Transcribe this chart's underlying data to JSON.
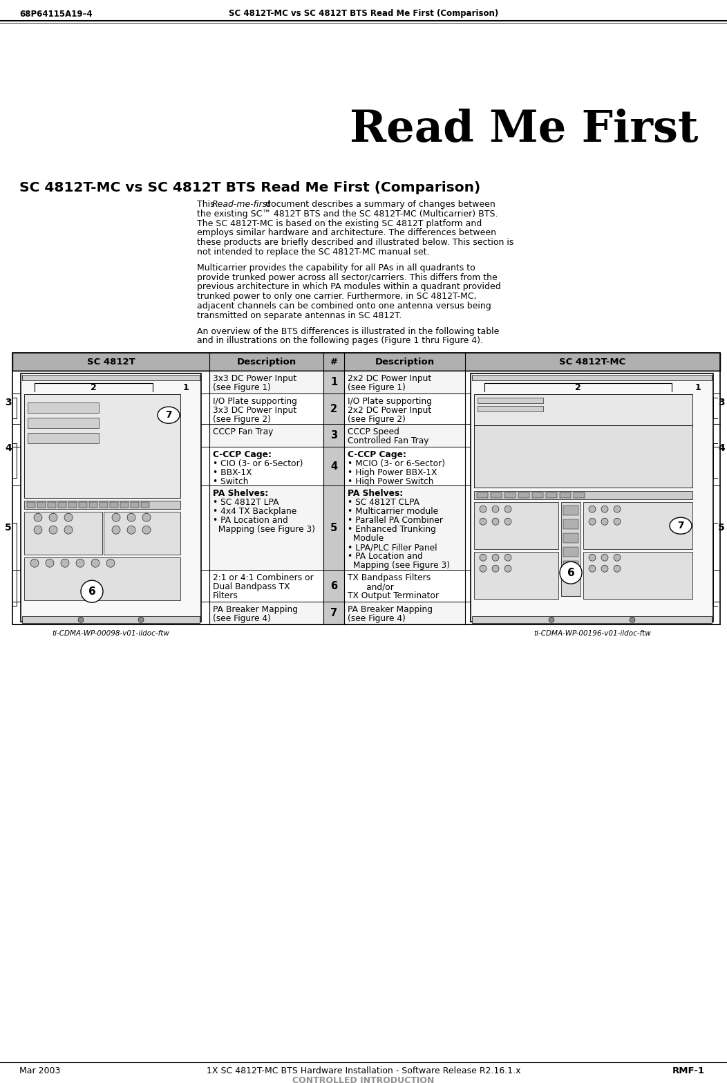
{
  "header_left": "68P64115A19–4",
  "header_center": "SC 4812T-MC vs SC 4812T BTS Read Me First (Comparison)",
  "big_title": "Read Me First",
  "section_title": "SC 4812T-MC vs SC 4812T BTS Read Me First (Comparison)",
  "lines1": [
    "This ’Read-me-first’ document describes a summary of changes between",
    "the existing SC™ 4812T BTS and the SC 4812T-MC (Multicarrier) BTS.",
    "The SC 4812T-MC is based on the existing SC 4812T platform and",
    "employs similar hardware and architecture. The differences between",
    "these products are briefly described and illustrated below. This section is",
    "not intended to replace the SC 4812T-MC manual set."
  ],
  "lines2": [
    "Multicarrier provides the capability for all PAs in all quadrants to",
    "provide trunked power across all sector/carriers. This differs from the",
    "previous architecture in which PA modules within a quadrant provided",
    "trunked power to only one carrier. Furthermore, in SC 4812T-MC,",
    "adjacent channels can be combined onto one antenna versus being",
    "transmitted on separate antennas in SC 4812T."
  ],
  "lines3": [
    "An overview of the BTS differences is illustrated in the following table",
    "and in illustrations on the following pages (Figure 1 thru Figure 4)."
  ],
  "col_headers": [
    "SC 4812T",
    "Description",
    "#",
    "Description",
    "SC 4812T-MC"
  ],
  "rows": [
    {
      "num": "1",
      "dl": "3x3 DC Power Input\n(see Figure 1)",
      "dr": "2x2 DC Power Input\n(see Figure 1)"
    },
    {
      "num": "2",
      "dl": "I/O Plate supporting\n3x3 DC Power Input\n(see Figure 2)",
      "dr": "I/O Plate supporting\n2x2 DC Power Input\n(see Figure 2)"
    },
    {
      "num": "3",
      "dl": "CCCP Fan Tray",
      "dr": "CCCP Speed\nControlled Fan Tray"
    },
    {
      "num": "4",
      "dl": "C-CCP Cage:\n• CIO (3- or 6-Sector)\n• BBX-1X\n• Switch",
      "dr": "C-CCP Cage:\n• MCIO (3- or 6-Sector)\n• High Power BBX-1X\n• High Power Switch"
    },
    {
      "num": "5",
      "dl": "PA Shelves:\n• SC 4812T LPA\n• 4x4 TX Backplane\n• PA Location and\n  Mapping (see Figure 3)",
      "dr": "PA Shelves:\n• SC 4812T CLPA\n• Multicarrier module\n• Parallel PA Combiner\n• Enhanced Trunking\n  Module\n• LPA/PLC Filler Panel\n• PA Location and\n  Mapping (see Figure 3)"
    },
    {
      "num": "6",
      "dl": "2:1 or 4:1 Combiners or\nDual Bandpass TX\nFilters",
      "dr": "TX Bandpass Filters\n       and/or\nTX Output Terminator"
    },
    {
      "num": "7",
      "dl": "PA Breaker Mapping\n(see Figure 4)",
      "dr": "PA Breaker Mapping\n(see Figure 4)"
    }
  ],
  "footer_left": "Mar 2003",
  "footer_center": "1X SC 4812T-MC BTS Hardware Installation - Software Release R2.16.1.x",
  "footer_right": "RMF-1",
  "footer_sub": "CONTROLLED INTRODUCTION",
  "img_left_label": "ti-CDMA-WP-00098-v01-ildoc-ftw",
  "img_right_label": "ti-CDMA-WP-00196-v01-ildoc-ftw",
  "bg": "#ffffff",
  "black": "#000000",
  "gray_hdr": "#b0b0b0",
  "gray_num_col": "#c8c8c8",
  "gray_light": "#e0e0e0"
}
